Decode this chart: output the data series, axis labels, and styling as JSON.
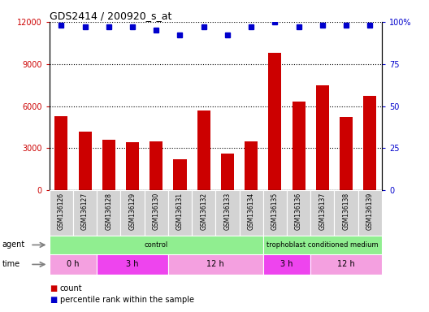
{
  "title": "GDS2414 / 200920_s_at",
  "samples": [
    "GSM136126",
    "GSM136127",
    "GSM136128",
    "GSM136129",
    "GSM136130",
    "GSM136131",
    "GSM136132",
    "GSM136133",
    "GSM136134",
    "GSM136135",
    "GSM136136",
    "GSM136137",
    "GSM136138",
    "GSM136139"
  ],
  "counts": [
    5300,
    4200,
    3600,
    3400,
    3500,
    2200,
    5700,
    2600,
    3500,
    9800,
    6300,
    7500,
    5200,
    6700
  ],
  "percentile_ranks": [
    98,
    97,
    97,
    97,
    95,
    92,
    97,
    92,
    97,
    100,
    97,
    98,
    98,
    98
  ],
  "bar_color": "#cc0000",
  "dot_color": "#0000cc",
  "ylim_left": [
    0,
    12000
  ],
  "ylim_right": [
    0,
    100
  ],
  "yticks_left": [
    0,
    3000,
    6000,
    9000,
    12000
  ],
  "yticks_right": [
    0,
    25,
    50,
    75,
    100
  ],
  "yticklabels_right": [
    "0",
    "25",
    "50",
    "75",
    "100%"
  ],
  "agent_starts": [
    0,
    9
  ],
  "agent_ends": [
    9,
    14
  ],
  "agent_labels": [
    "control",
    "trophoblast conditioned medium"
  ],
  "agent_color": "#90ee90",
  "time_starts": [
    0,
    2,
    5,
    9,
    11
  ],
  "time_ends": [
    2,
    5,
    9,
    11,
    14
  ],
  "time_labels": [
    "0 h",
    "3 h",
    "12 h",
    "3 h",
    "12 h"
  ],
  "time_colors": [
    "#f4a0e0",
    "#ee44ee",
    "#f4a0e0",
    "#ee44ee",
    "#f4a0e0"
  ],
  "xticklabel_bg": "#d3d3d3",
  "background_color": "#ffffff",
  "legend_count_color": "#cc0000",
  "legend_pct_color": "#0000cc"
}
